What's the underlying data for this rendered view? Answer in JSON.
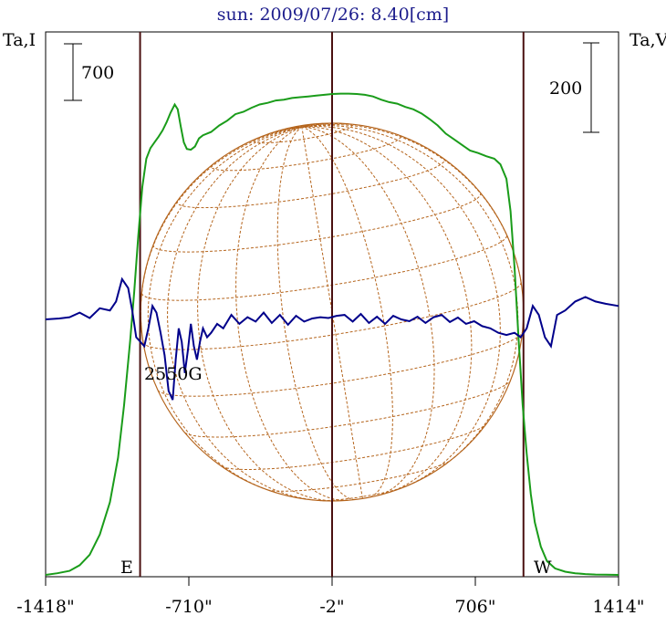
{
  "chart_data": {
    "type": "line",
    "title": "sun: 2009/07/26: 8.40[cm]",
    "left_axis_label": "Ta,I",
    "right_axis_label": "Ta,V",
    "x_tick_labels": [
      "-1418\"",
      "-710\"",
      "-2\"",
      "706\"",
      "1414\""
    ],
    "x_ticks": [
      -1418,
      -710,
      -2,
      706,
      1414
    ],
    "xlim": [
      -1418,
      1414
    ],
    "scale_bar_left": {
      "label": "700",
      "value": 700
    },
    "scale_bar_right": {
      "label": "200",
      "value": 200
    },
    "limb_markers": [
      {
        "label": "E",
        "x": -951
      },
      {
        "label": "W",
        "x": 944
      }
    ],
    "center_marker_x": -2,
    "annotation": {
      "label": "2550G",
      "x": -770
    },
    "solar_radius_arcsec": 946,
    "series_I": {
      "color": "#1a9c1a",
      "x": [
        -1418,
        -1360,
        -1300,
        -1250,
        -1200,
        -1150,
        -1100,
        -1060,
        -1030,
        -1000,
        -980,
        -960,
        -940,
        -920,
        -900,
        -880,
        -860,
        -840,
        -820,
        -800,
        -780,
        -765,
        -750,
        -735,
        -720,
        -700,
        -680,
        -660,
        -640,
        -600,
        -560,
        -520,
        -480,
        -440,
        -400,
        -360,
        -320,
        -280,
        -240,
        -200,
        -160,
        -120,
        -80,
        -40,
        0,
        40,
        80,
        120,
        160,
        200,
        240,
        280,
        320,
        360,
        400,
        440,
        480,
        520,
        560,
        600,
        640,
        680,
        720,
        760,
        800,
        830,
        860,
        880,
        900,
        920,
        940,
        960,
        980,
        1000,
        1030,
        1060,
        1100,
        1150,
        1200,
        1250,
        1300,
        1350,
        1414
      ],
      "y": [
        0,
        20,
        50,
        120,
        250,
        500,
        900,
        1450,
        2100,
        2900,
        3500,
        4200,
        4800,
        5150,
        5280,
        5350,
        5420,
        5500,
        5600,
        5720,
        5820,
        5760,
        5550,
        5350,
        5270,
        5260,
        5300,
        5400,
        5440,
        5480,
        5560,
        5620,
        5700,
        5730,
        5780,
        5820,
        5840,
        5870,
        5880,
        5900,
        5910,
        5920,
        5930,
        5940,
        5950,
        5955,
        5955,
        5950,
        5940,
        5920,
        5880,
        5850,
        5830,
        5790,
        5760,
        5710,
        5640,
        5560,
        5460,
        5390,
        5320,
        5250,
        5220,
        5180,
        5150,
        5080,
        4900,
        4500,
        3800,
        2900,
        2100,
        1500,
        1000,
        650,
        350,
        170,
        80,
        40,
        20,
        10,
        5,
        2,
        0
      ]
    },
    "series_V": {
      "color": "#00008b",
      "x": [
        -1418,
        -1350,
        -1300,
        -1250,
        -1200,
        -1150,
        -1100,
        -1070,
        -1040,
        -1010,
        -990,
        -970,
        -950,
        -930,
        -910,
        -890,
        -870,
        -850,
        -830,
        -810,
        -790,
        -775,
        -760,
        -745,
        -730,
        -715,
        -700,
        -685,
        -670,
        -655,
        -640,
        -620,
        -600,
        -570,
        -540,
        -500,
        -460,
        -420,
        -380,
        -340,
        -300,
        -260,
        -220,
        -180,
        -140,
        -100,
        -60,
        -20,
        20,
        60,
        100,
        140,
        180,
        220,
        260,
        300,
        340,
        380,
        420,
        460,
        500,
        540,
        580,
        620,
        660,
        700,
        740,
        780,
        820,
        860,
        900,
        930,
        960,
        990,
        1020,
        1050,
        1080,
        1110,
        1150,
        1200,
        1250,
        1300,
        1350,
        1414
      ],
      "y": [
        0,
        2,
        5,
        15,
        3,
        25,
        20,
        40,
        90,
        70,
        20,
        -40,
        -50,
        -60,
        -20,
        30,
        15,
        -30,
        -80,
        -160,
        -180,
        -90,
        -20,
        -50,
        -120,
        -70,
        -10,
        -60,
        -90,
        -50,
        -20,
        -40,
        -30,
        -10,
        -20,
        10,
        -10,
        5,
        -5,
        15,
        -8,
        10,
        -12,
        8,
        -5,
        2,
        5,
        3,
        8,
        10,
        -5,
        12,
        -8,
        6,
        -10,
        8,
        0,
        -4,
        6,
        -8,
        5,
        10,
        -6,
        4,
        -10,
        -4,
        -15,
        -20,
        -30,
        -35,
        -30,
        -40,
        -20,
        30,
        10,
        -40,
        -60,
        10,
        20,
        40,
        50,
        40,
        35,
        30
      ]
    }
  }
}
